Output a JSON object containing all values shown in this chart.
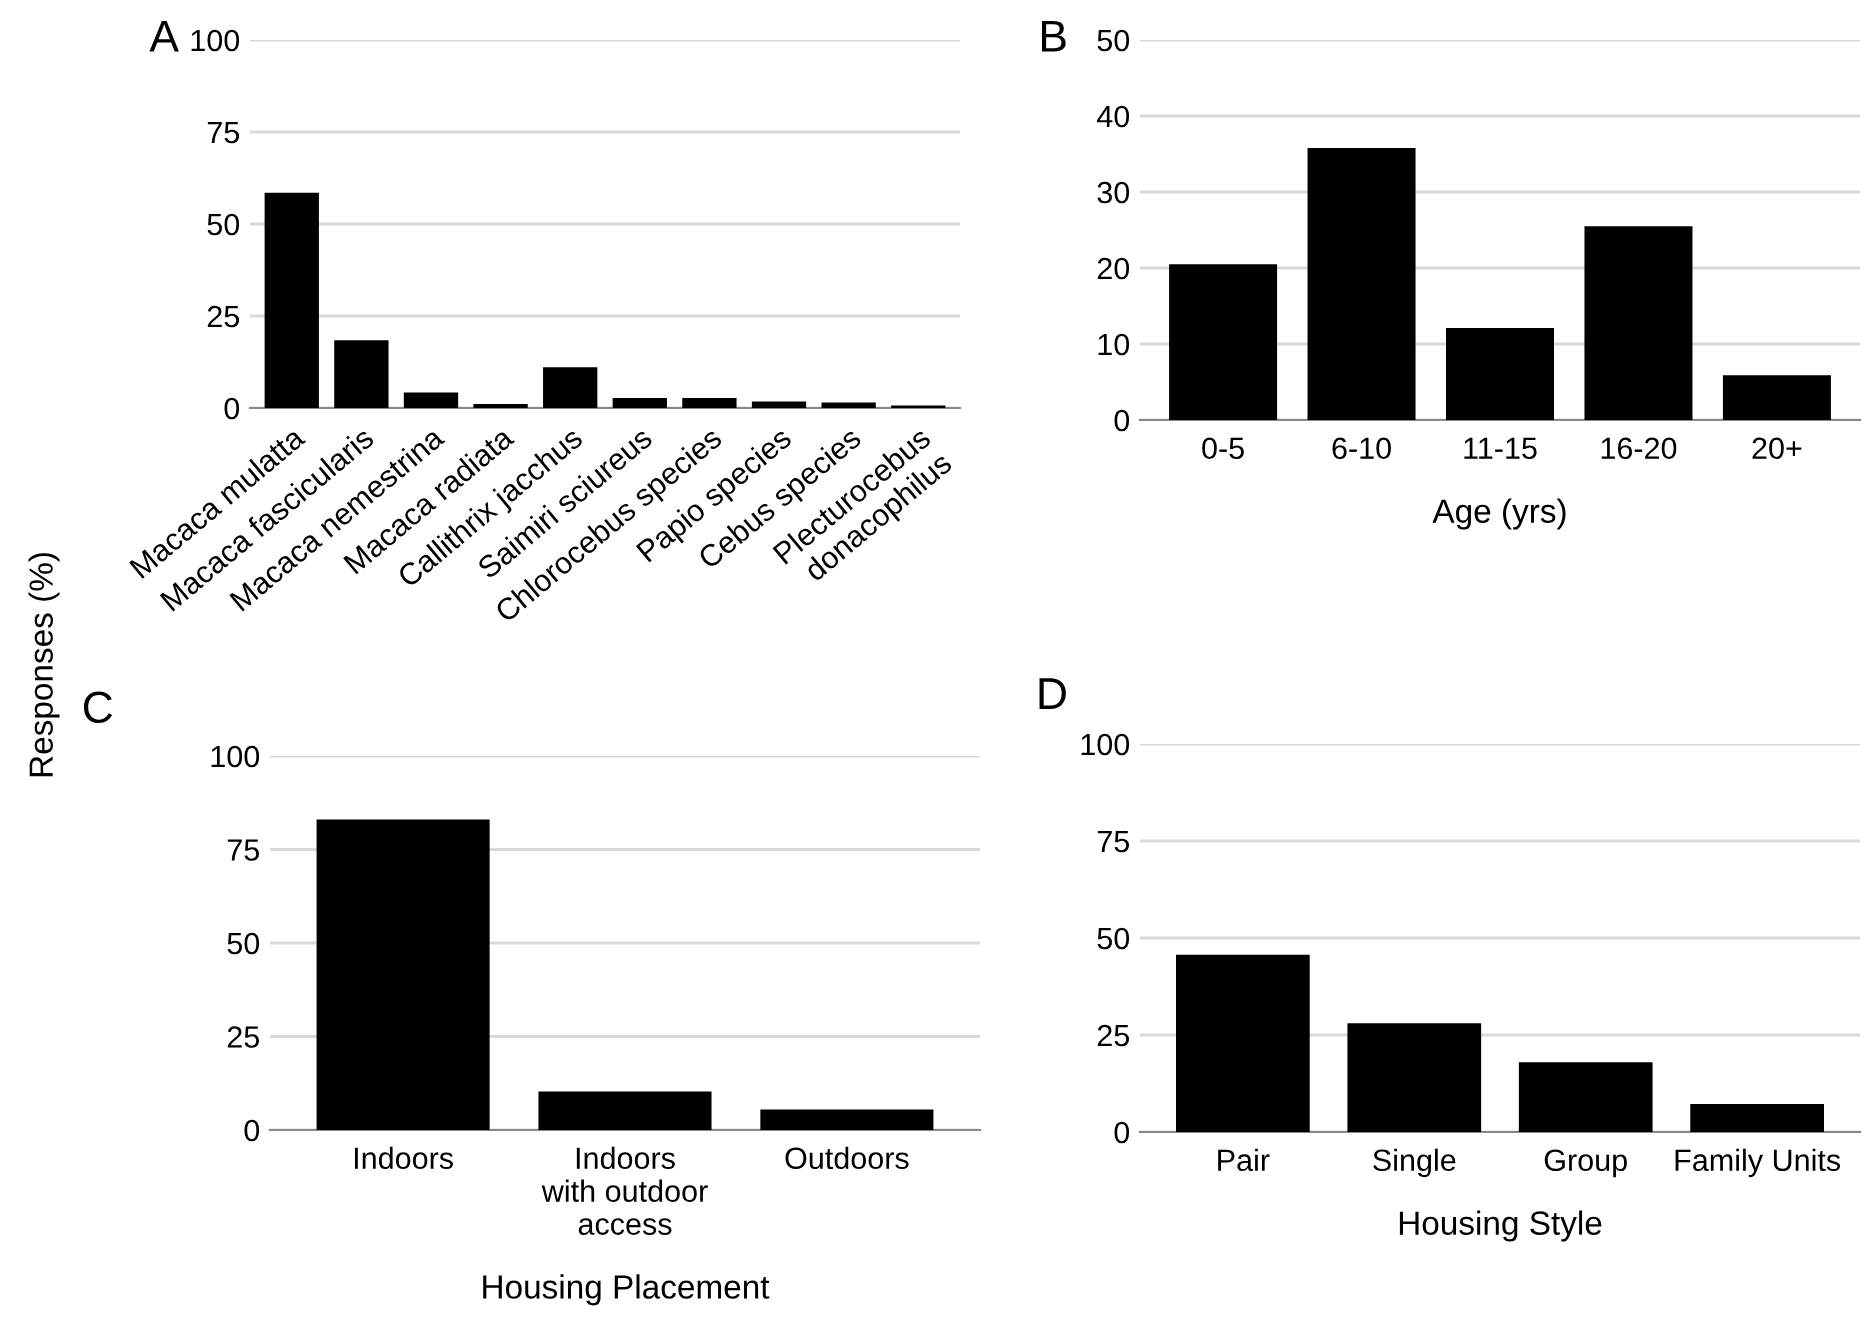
{
  "chart_data": [
    {
      "type": "bar",
      "title": "A",
      "ylabel": "Responses (%)",
      "categories": [
        "Macaca mulatta",
        "Macaca fascicularis",
        "Macaca nemestrina",
        "Macaca radiata",
        "Callithrix jacchus",
        "Saimiri sciureus",
        "Chlorocebus species",
        "Papio species",
        "Cebus species",
        "Plecturocebus\ndonacophilus"
      ],
      "values": [
        58.5,
        18.4,
        4.2,
        1.1,
        11.1,
        2.7,
        2.7,
        1.8,
        1.5,
        0.7
      ],
      "color": "#000000",
      "ylim": [
        0,
        100
      ],
      "yticks": [
        0,
        25,
        50,
        75,
        100
      ],
      "grid": "y"
    },
    {
      "type": "bar",
      "title": "B",
      "xlabel": "Age (yrs)",
      "categories": [
        "0-5",
        "6-10",
        "11-15",
        "16-20",
        "20+"
      ],
      "values": [
        20.5,
        35.8,
        12.1,
        25.5,
        5.9
      ],
      "color": "#000000",
      "ylim": [
        0,
        50
      ],
      "yticks": [
        0,
        10,
        20,
        30,
        40,
        50
      ],
      "grid": "y"
    },
    {
      "type": "bar",
      "title": "C",
      "xlabel": "Housing Placement",
      "categories": [
        "Indoors",
        "Indoors\nwith outdoor\naccess",
        "Outdoors"
      ],
      "values": [
        83,
        10.3,
        5.5
      ],
      "color": "#000000",
      "ylim": [
        0,
        100
      ],
      "yticks": [
        0,
        25,
        50,
        75,
        100
      ],
      "grid": "y"
    },
    {
      "type": "bar",
      "title": "D",
      "xlabel": "Housing Style",
      "categories": [
        "Pair",
        "Single",
        "Group",
        "Family Units"
      ],
      "values": [
        45.7,
        28,
        18,
        7.2
      ],
      "color": "#000000",
      "ylim": [
        0,
        100
      ],
      "yticks": [
        0,
        25,
        50,
        75,
        100
      ],
      "grid": "y"
    }
  ]
}
